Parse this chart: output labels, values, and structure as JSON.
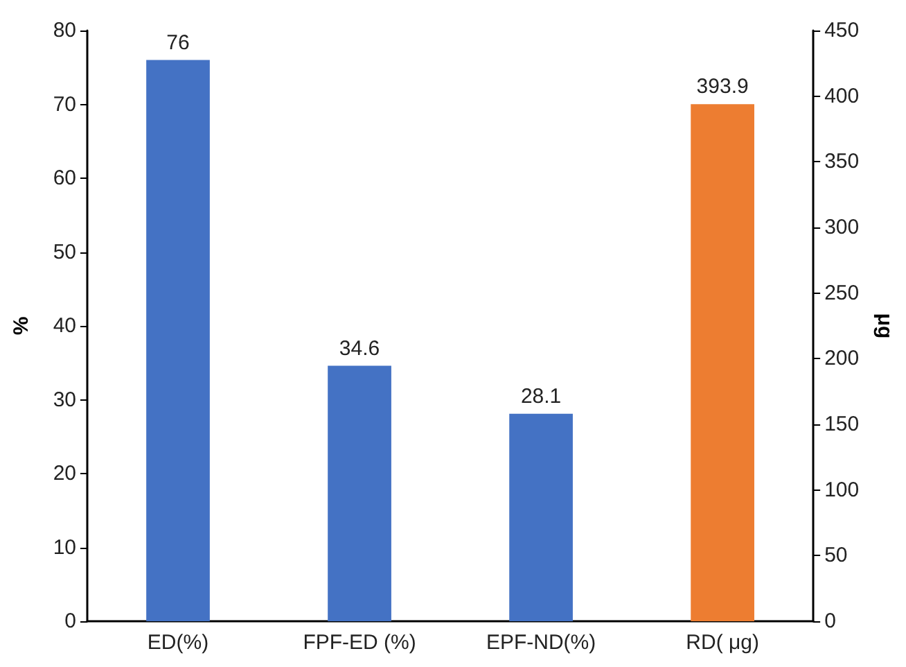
{
  "chart_data": {
    "type": "bar",
    "categories": [
      "ED(%)",
      "FPF-ED (%)",
      "EPF-ND(%)",
      "RD( μg)"
    ],
    "series": [
      {
        "color": "#4472c4",
        "values": [
          76,
          34.6,
          28.1,
          null
        ]
      },
      {
        "color": "#ed7d31",
        "axis": "y2",
        "values": [
          null,
          null,
          null,
          393.9
        ]
      }
    ],
    "ylabel": "%",
    "y2label": "μg",
    "ylim": [
      0,
      80
    ],
    "yticks": [
      0,
      10,
      20,
      30,
      40,
      50,
      60,
      70,
      80
    ],
    "y2lim": [
      0,
      450
    ],
    "y2ticks": [
      0,
      50,
      100,
      150,
      200,
      250,
      300,
      350,
      400,
      450
    ],
    "data_labels": true
  }
}
